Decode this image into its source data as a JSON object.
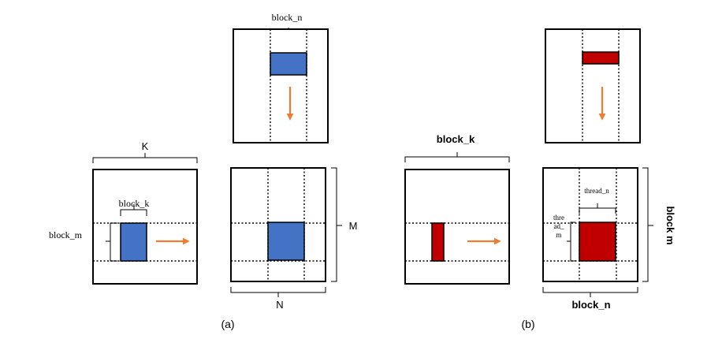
{
  "panel_a": {
    "caption": "(a)",
    "label_k": "K",
    "label_block_k": "block_k",
    "label_block_m": "block_m",
    "label_block_n": "block_n",
    "label_m": "M",
    "label_n": "N"
  },
  "panel_b": {
    "caption": "(b)",
    "label_block_k": "block_k",
    "label_block_m": "block m",
    "label_block_n": "block_n",
    "label_thread_n": "thread_n",
    "label_thread_m_1": "thre",
    "label_thread_m_2": "ad_",
    "label_thread_m_3": "m"
  },
  "colors": {
    "tile_a": "#4472c4",
    "tile_b": "#c00000",
    "arrow": "#ed7d31"
  }
}
